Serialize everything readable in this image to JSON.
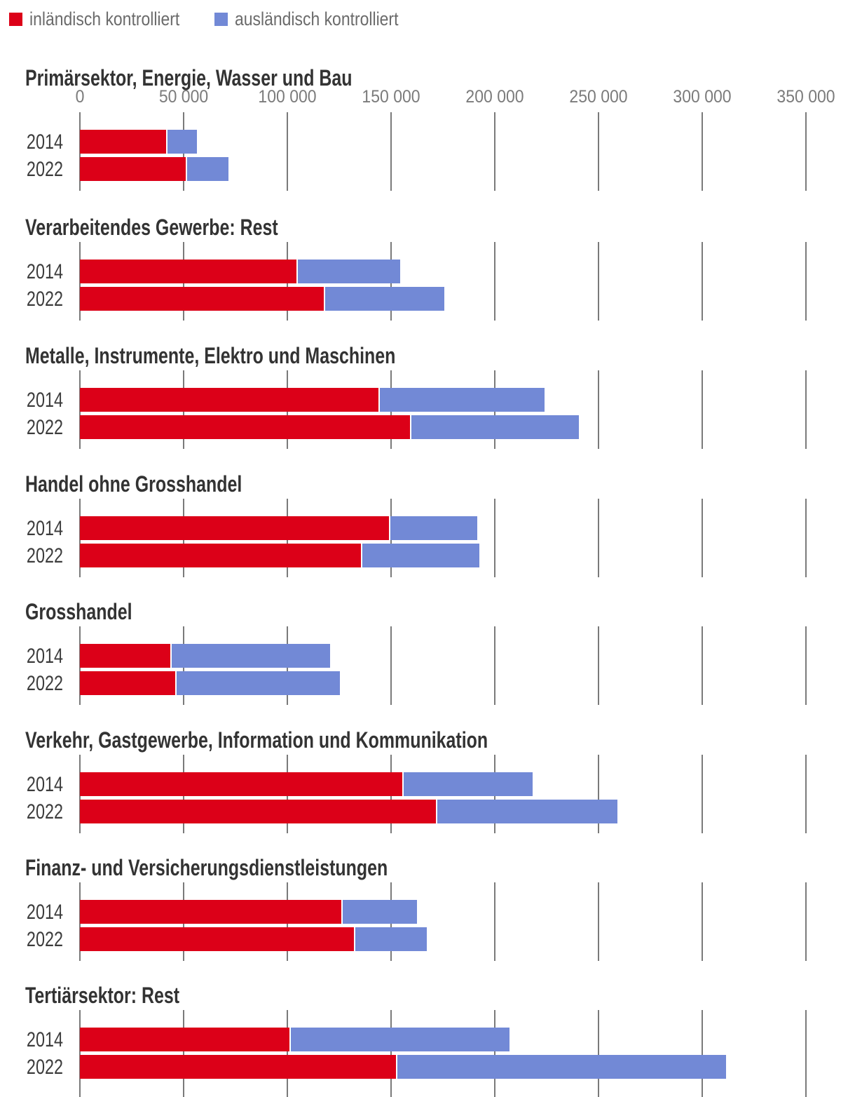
{
  "legend": {
    "items": [
      {
        "key": "inlaendisch",
        "label": "inländisch kontrolliert",
        "color": "#dc0018"
      },
      {
        "key": "auslaendisch",
        "label": "ausländisch kontrolliert",
        "color": "#7289d6"
      }
    ]
  },
  "colors": {
    "inlaendisch": "#dc0018",
    "auslaendisch": "#7289d6",
    "gridline": "#7a7a7a",
    "section_title_text": "#333333",
    "axis_text": "#7b7b7b",
    "year_text": "#3c3c3c",
    "legend_text": "#6b6b6b",
    "background": "#ffffff"
  },
  "chart_data": {
    "type": "bar",
    "orientation": "horizontal",
    "stacked": true,
    "grid": "vertical-only",
    "legend_position": "top-left",
    "xlim": [
      0,
      350000
    ],
    "x_tick_values": [
      0,
      50000,
      100000,
      150000,
      200000,
      250000,
      300000,
      350000
    ],
    "x_tick_labels": [
      "0",
      "50 000",
      "100 000",
      "150 000",
      "200 000",
      "250 000",
      "300 000",
      "350 000"
    ],
    "series_names": [
      "inländisch kontrolliert",
      "ausländisch kontrolliert"
    ],
    "sections": [
      {
        "title": "Primärsektor, Energie, Wasser und Bau",
        "rows": [
          {
            "year": "2014",
            "inlaendisch": 41500,
            "auslaendisch": 15000
          },
          {
            "year": "2022",
            "inlaendisch": 51000,
            "auslaendisch": 20500
          }
        ]
      },
      {
        "title": "Verarbeitendes Gewerbe: Rest",
        "rows": [
          {
            "year": "2014",
            "inlaendisch": 104500,
            "auslaendisch": 50000
          },
          {
            "year": "2022",
            "inlaendisch": 117500,
            "auslaendisch": 58000
          }
        ]
      },
      {
        "title": "Metalle, Instrumente, Elektro und Maschinen",
        "rows": [
          {
            "year": "2014",
            "inlaendisch": 144000,
            "auslaendisch": 80000
          },
          {
            "year": "2022",
            "inlaendisch": 159000,
            "auslaendisch": 81500
          }
        ]
      },
      {
        "title": "Handel ohne Grosshandel",
        "rows": [
          {
            "year": "2014",
            "inlaendisch": 149000,
            "auslaendisch": 42500
          },
          {
            "year": "2022",
            "inlaendisch": 135500,
            "auslaendisch": 57000
          }
        ]
      },
      {
        "title": "Grosshandel",
        "rows": [
          {
            "year": "2014",
            "inlaendisch": 43500,
            "auslaendisch": 77000
          },
          {
            "year": "2022",
            "inlaendisch": 46000,
            "auslaendisch": 79500
          }
        ]
      },
      {
        "title": "Verkehr, Gastgewerbe, Information und Kommunikation",
        "rows": [
          {
            "year": "2014",
            "inlaendisch": 155500,
            "auslaendisch": 63000
          },
          {
            "year": "2022",
            "inlaendisch": 171500,
            "auslaendisch": 87500
          }
        ]
      },
      {
        "title": "Finanz- und Versicherungsdienstleistungen",
        "rows": [
          {
            "year": "2014",
            "inlaendisch": 126000,
            "auslaendisch": 36500
          },
          {
            "year": "2022",
            "inlaendisch": 132000,
            "auslaendisch": 35000
          }
        ]
      },
      {
        "title": "Tertiärsektor: Rest",
        "rows": [
          {
            "year": "2014",
            "inlaendisch": 101000,
            "auslaendisch": 106000
          },
          {
            "year": "2022",
            "inlaendisch": 152500,
            "auslaendisch": 159000
          }
        ]
      }
    ]
  }
}
